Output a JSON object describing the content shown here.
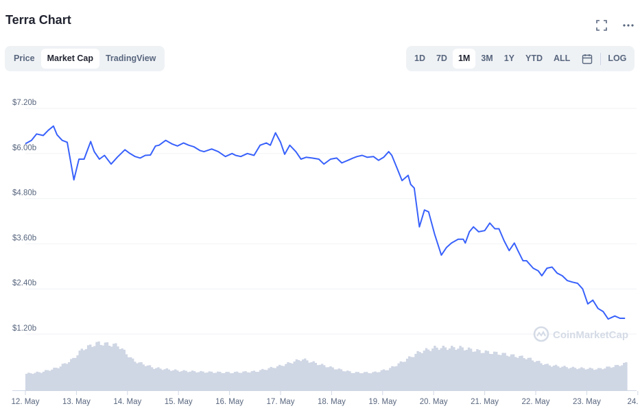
{
  "header": {
    "title": "Terra Chart",
    "fullscreen_icon": "expand-icon",
    "more_icon": "more-horizontal-icon"
  },
  "view_tabs": [
    "Price",
    "Market Cap",
    "TradingView"
  ],
  "view_tabs_active": 1,
  "time_ranges": [
    "1D",
    "7D",
    "1M",
    "3M",
    "1Y",
    "YTD",
    "ALL"
  ],
  "time_ranges_active": 2,
  "calendar_icon": "calendar-icon",
  "log_label": "LOG",
  "watermark": "CoinMarketCap",
  "colors": {
    "line": "#3861fb",
    "volume": "#cfd6e4",
    "grid": "#eff2f5",
    "axis_text": "#58667e"
  },
  "chart_data": {
    "type": "line",
    "y_axis": {
      "ticks": [
        "$7.20b",
        "$6.00b",
        "$4.80b",
        "$3.60b",
        "$2.40b",
        "$1.20b"
      ],
      "tick_values": [
        7.2,
        6.0,
        4.8,
        3.6,
        2.4,
        1.2
      ],
      "unit": "billion USD"
    },
    "x_axis": {
      "tick_labels": [
        "12. May",
        "13. May",
        "14. May",
        "15. May",
        "16. May",
        "17. May",
        "18. May",
        "19. May",
        "20. May",
        "21. May",
        "22. May",
        "23. May",
        "24. …"
      ],
      "tick_days": [
        0,
        1,
        2,
        3,
        4,
        5,
        6,
        7,
        8,
        9,
        10,
        11,
        12
      ]
    },
    "series": [
      {
        "values": [
          [
            0.0,
            6.26
          ],
          [
            0.12,
            6.35
          ],
          [
            0.22,
            6.52
          ],
          [
            0.35,
            6.48
          ],
          [
            0.45,
            6.62
          ],
          [
            0.55,
            6.73
          ],
          [
            0.62,
            6.5
          ],
          [
            0.72,
            6.35
          ],
          [
            0.82,
            6.3
          ],
          [
            0.95,
            5.3
          ],
          [
            1.05,
            5.85
          ],
          [
            1.15,
            5.85
          ],
          [
            1.28,
            6.32
          ],
          [
            1.35,
            6.05
          ],
          [
            1.45,
            5.85
          ],
          [
            1.55,
            5.95
          ],
          [
            1.68,
            5.72
          ],
          [
            1.8,
            5.9
          ],
          [
            1.95,
            6.1
          ],
          [
            2.05,
            6.0
          ],
          [
            2.15,
            5.92
          ],
          [
            2.25,
            5.88
          ],
          [
            2.35,
            5.95
          ],
          [
            2.45,
            5.96
          ],
          [
            2.55,
            6.2
          ],
          [
            2.62,
            6.22
          ],
          [
            2.75,
            6.35
          ],
          [
            2.88,
            6.25
          ],
          [
            2.98,
            6.2
          ],
          [
            3.1,
            6.28
          ],
          [
            3.2,
            6.22
          ],
          [
            3.3,
            6.18
          ],
          [
            3.42,
            6.08
          ],
          [
            3.5,
            6.05
          ],
          [
            3.65,
            6.12
          ],
          [
            3.78,
            6.05
          ],
          [
            3.92,
            5.92
          ],
          [
            4.05,
            6.0
          ],
          [
            4.12,
            5.95
          ],
          [
            4.22,
            5.92
          ],
          [
            4.35,
            6.0
          ],
          [
            4.48,
            5.95
          ],
          [
            4.6,
            6.22
          ],
          [
            4.72,
            6.28
          ],
          [
            4.8,
            6.22
          ],
          [
            4.9,
            6.55
          ],
          [
            5.0,
            6.3
          ],
          [
            5.08,
            5.98
          ],
          [
            5.18,
            6.22
          ],
          [
            5.3,
            6.05
          ],
          [
            5.4,
            5.85
          ],
          [
            5.5,
            5.9
          ],
          [
            5.62,
            5.88
          ],
          [
            5.75,
            5.85
          ],
          [
            5.85,
            5.72
          ],
          [
            5.98,
            5.85
          ],
          [
            6.1,
            5.88
          ],
          [
            6.2,
            5.75
          ],
          [
            6.32,
            5.82
          ],
          [
            6.42,
            5.88
          ],
          [
            6.5,
            5.92
          ],
          [
            6.6,
            5.95
          ],
          [
            6.7,
            5.9
          ],
          [
            6.82,
            5.92
          ],
          [
            6.92,
            5.82
          ],
          [
            7.02,
            5.9
          ],
          [
            7.12,
            6.05
          ],
          [
            7.18,
            5.95
          ],
          [
            7.28,
            5.62
          ],
          [
            7.38,
            5.28
          ],
          [
            7.5,
            5.42
          ],
          [
            7.55,
            5.18
          ],
          [
            7.62,
            5.08
          ],
          [
            7.72,
            4.05
          ],
          [
            7.82,
            4.5
          ],
          [
            7.9,
            4.45
          ],
          [
            8.02,
            3.85
          ],
          [
            8.15,
            3.3
          ],
          [
            8.25,
            3.5
          ],
          [
            8.35,
            3.62
          ],
          [
            8.48,
            3.72
          ],
          [
            8.58,
            3.72
          ],
          [
            8.62,
            3.62
          ],
          [
            8.7,
            3.92
          ],
          [
            8.78,
            4.05
          ],
          [
            8.88,
            3.92
          ],
          [
            9.0,
            3.95
          ],
          [
            9.1,
            4.15
          ],
          [
            9.2,
            4.0
          ],
          [
            9.28,
            4.0
          ],
          [
            9.38,
            3.68
          ],
          [
            9.48,
            3.42
          ],
          [
            9.58,
            3.62
          ],
          [
            9.65,
            3.42
          ],
          [
            9.75,
            3.15
          ],
          [
            9.82,
            3.15
          ],
          [
            9.95,
            2.95
          ],
          [
            10.05,
            2.88
          ],
          [
            10.12,
            2.75
          ],
          [
            10.22,
            2.95
          ],
          [
            10.32,
            2.98
          ],
          [
            10.42,
            2.82
          ],
          [
            10.52,
            2.75
          ],
          [
            10.62,
            2.62
          ],
          [
            10.72,
            2.58
          ],
          [
            10.82,
            2.55
          ],
          [
            10.92,
            2.4
          ],
          [
            11.02,
            2.0
          ],
          [
            11.12,
            2.1
          ],
          [
            11.22,
            1.88
          ],
          [
            11.32,
            1.8
          ],
          [
            11.42,
            1.6
          ],
          [
            11.55,
            1.68
          ],
          [
            11.65,
            1.62
          ],
          [
            11.75,
            1.62
          ]
        ]
      }
    ],
    "volume_profile": [
      [
        0.0,
        0.28
      ],
      [
        0.3,
        0.31
      ],
      [
        0.6,
        0.38
      ],
      [
        0.9,
        0.52
      ],
      [
        1.1,
        0.7
      ],
      [
        1.4,
        0.8
      ],
      [
        1.8,
        0.76
      ],
      [
        2.1,
        0.5
      ],
      [
        2.5,
        0.38
      ],
      [
        3.0,
        0.33
      ],
      [
        3.5,
        0.31
      ],
      [
        4.0,
        0.3
      ],
      [
        4.5,
        0.32
      ],
      [
        5.0,
        0.42
      ],
      [
        5.4,
        0.53
      ],
      [
        5.7,
        0.45
      ],
      [
        6.0,
        0.38
      ],
      [
        6.4,
        0.3
      ],
      [
        6.8,
        0.3
      ],
      [
        7.1,
        0.36
      ],
      [
        7.4,
        0.5
      ],
      [
        7.7,
        0.65
      ],
      [
        8.0,
        0.72
      ],
      [
        8.5,
        0.72
      ],
      [
        8.9,
        0.66
      ],
      [
        9.3,
        0.62
      ],
      [
        9.8,
        0.55
      ],
      [
        10.2,
        0.43
      ],
      [
        10.7,
        0.38
      ],
      [
        11.2,
        0.36
      ],
      [
        11.6,
        0.42
      ],
      [
        11.75,
        0.46
      ]
    ]
  }
}
